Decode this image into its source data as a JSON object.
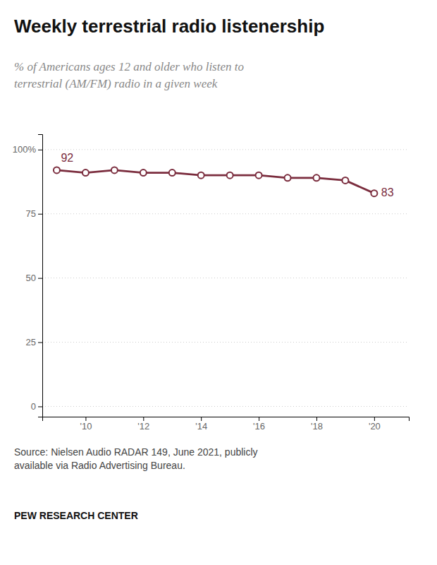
{
  "chart_data": {
    "type": "line",
    "title": "Weekly terrestrial radio listenership",
    "subtitle": "% of Americans ages 12 and older who listen to\nterrestrial (AM/FM) radio in a given week",
    "x": [
      2009,
      2010,
      2011,
      2012,
      2013,
      2014,
      2015,
      2016,
      2017,
      2018,
      2019,
      2020
    ],
    "values": [
      92,
      91,
      92,
      91,
      91,
      90,
      90,
      90,
      89,
      89,
      88,
      83
    ],
    "color": "#7b2d3e",
    "marker": "circle",
    "grid": true,
    "xlim": [
      2008.5,
      2021.2
    ],
    "xticks": [
      {
        "value": 2010,
        "label": "'10"
      },
      {
        "value": 2012,
        "label": "'12"
      },
      {
        "value": 2014,
        "label": "'14"
      },
      {
        "value": 2016,
        "label": "'16"
      },
      {
        "value": 2018,
        "label": "'18"
      },
      {
        "value": 2020,
        "label": "'20"
      }
    ],
    "ylim": [
      -4,
      106
    ],
    "yticks": [
      0,
      25,
      50,
      75,
      {
        "value": 100,
        "label": "100%"
      }
    ],
    "annotations": [
      {
        "text": "92",
        "x": 2009,
        "y": 92
      },
      {
        "text": "83",
        "x": 2020,
        "y": 83
      }
    ],
    "source": "Source: Nielsen Audio RADAR 149, June 2021, publicly\navailable via Radio Advertising Bureau.",
    "footer": "PEW RESEARCH CENTER"
  }
}
